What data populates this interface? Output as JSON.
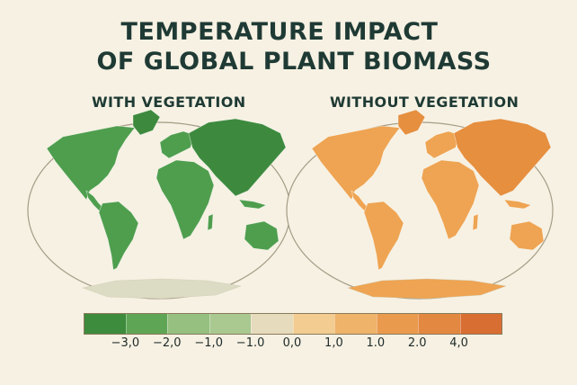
{
  "title": {
    "line1": "TEMPERATURE IMPACT",
    "line2": "OF GLOBAL PLANT BIOMASS"
  },
  "panels": [
    {
      "label": "WITH VEGETATION",
      "fill": "#4f9e4e",
      "fill_dark": "#3d8a3e",
      "antarctica": "#dcdcc4"
    },
    {
      "label": "WITHOUT VEGETATION",
      "fill": "#eea452",
      "fill_dark": "#e58f3f",
      "antarctica": "#eea452"
    }
  ],
  "legend": {
    "colors": [
      "#3d8b3d",
      "#5ea656",
      "#95c07f",
      "#a9c991",
      "#e6dbbd",
      "#f2cc90",
      "#efb36a",
      "#ea9a4d",
      "#e38840",
      "#d86e32"
    ],
    "ticks": [
      "−3,0",
      "−2,0",
      "−1,0",
      "−1.0",
      "0,0",
      "1,0",
      "1.0",
      "2.0",
      "4,0"
    ]
  }
}
